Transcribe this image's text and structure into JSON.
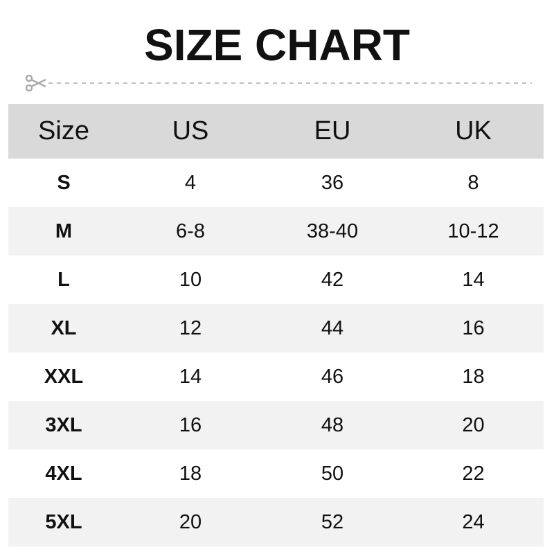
{
  "title": "SIZE CHART",
  "icons": {
    "cut": "scissors-icon"
  },
  "colors": {
    "header_bg": "#d9d9d9",
    "alt_row_bg": "#f2f2f2",
    "cutline": "#aaaaaa"
  },
  "table": {
    "headers": [
      "Size",
      "US",
      "EU",
      "UK"
    ],
    "rows": [
      [
        "S",
        "4",
        "36",
        "8"
      ],
      [
        "M",
        "6-8",
        "38-40",
        "10-12"
      ],
      [
        "L",
        "10",
        "42",
        "14"
      ],
      [
        "XL",
        "12",
        "44",
        "16"
      ],
      [
        "XXL",
        "14",
        "46",
        "18"
      ],
      [
        "3XL",
        "16",
        "48",
        "20"
      ],
      [
        "4XL",
        "18",
        "50",
        "22"
      ],
      [
        "5XL",
        "20",
        "52",
        "24"
      ]
    ]
  }
}
